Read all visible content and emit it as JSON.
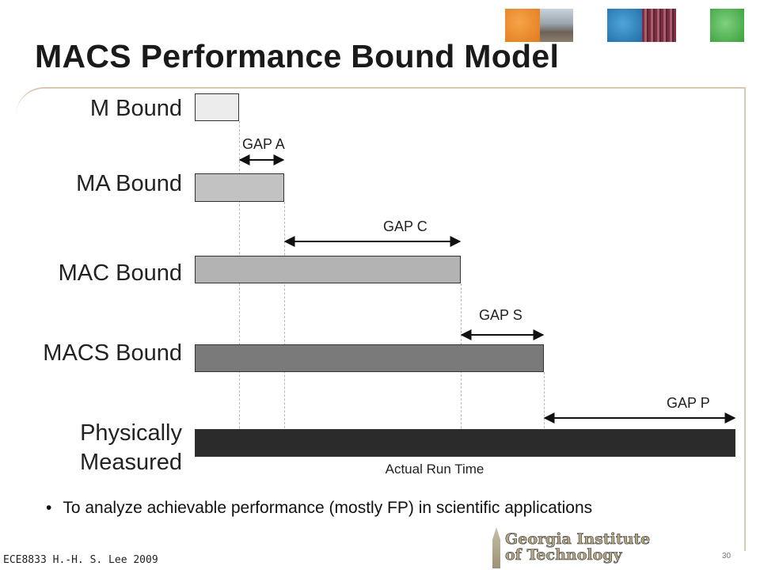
{
  "title": "MACS Performance Bound Model",
  "header_images": [
    "orange-tile",
    "campus-photo",
    "blue-tile",
    "circuit-photo",
    "green-tile"
  ],
  "rows": [
    {
      "label": "M Bound",
      "color": "#ececec"
    },
    {
      "label": "MA Bound",
      "color": "#c2c2c2"
    },
    {
      "label": "MAC Bound",
      "color": "#b3b3b3"
    },
    {
      "label": "MACS Bound",
      "color": "#7a7a7a"
    },
    {
      "label": "Physically\nMeasured",
      "color": "#2b2b2b"
    }
  ],
  "gaps": [
    "GAP A",
    "GAP C",
    "GAP S",
    "GAP P"
  ],
  "actual_label": "Actual Run Time",
  "bullet": "To analyze achievable performance (mostly FP) in scientific applications",
  "footer": "ECE8833 H.-H. S. Lee 2009",
  "page_number": "30",
  "logo": {
    "line1": "Georgia Institute",
    "line2": "of Technology"
  }
}
